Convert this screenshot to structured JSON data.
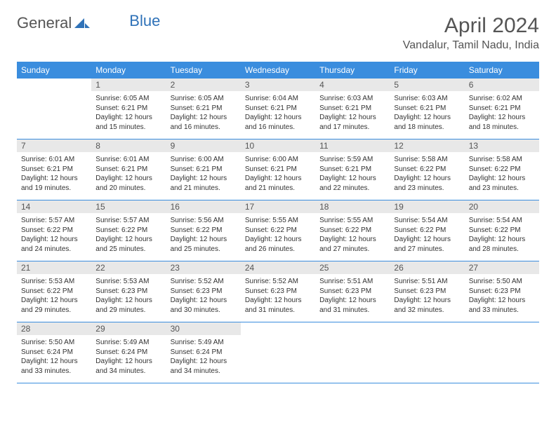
{
  "brand": {
    "part1": "General",
    "part2": "Blue"
  },
  "title": "April 2024",
  "location": "Vandalur, Tamil Nadu, India",
  "colors": {
    "header_bg": "#3a8dde",
    "header_fg": "#ffffff",
    "daynum_bg": "#e8e8e8",
    "row_border": "#3a8dde",
    "brand_gray": "#555555",
    "brand_blue": "#2f72b8"
  },
  "weekdays": [
    "Sunday",
    "Monday",
    "Tuesday",
    "Wednesday",
    "Thursday",
    "Friday",
    "Saturday"
  ],
  "weeks": [
    [
      {
        "n": "",
        "sr": "",
        "ss": "",
        "dl": ""
      },
      {
        "n": "1",
        "sr": "6:05 AM",
        "ss": "6:21 PM",
        "dl": "12 hours and 15 minutes."
      },
      {
        "n": "2",
        "sr": "6:05 AM",
        "ss": "6:21 PM",
        "dl": "12 hours and 16 minutes."
      },
      {
        "n": "3",
        "sr": "6:04 AM",
        "ss": "6:21 PM",
        "dl": "12 hours and 16 minutes."
      },
      {
        "n": "4",
        "sr": "6:03 AM",
        "ss": "6:21 PM",
        "dl": "12 hours and 17 minutes."
      },
      {
        "n": "5",
        "sr": "6:03 AM",
        "ss": "6:21 PM",
        "dl": "12 hours and 18 minutes."
      },
      {
        "n": "6",
        "sr": "6:02 AM",
        "ss": "6:21 PM",
        "dl": "12 hours and 18 minutes."
      }
    ],
    [
      {
        "n": "7",
        "sr": "6:01 AM",
        "ss": "6:21 PM",
        "dl": "12 hours and 19 minutes."
      },
      {
        "n": "8",
        "sr": "6:01 AM",
        "ss": "6:21 PM",
        "dl": "12 hours and 20 minutes."
      },
      {
        "n": "9",
        "sr": "6:00 AM",
        "ss": "6:21 PM",
        "dl": "12 hours and 21 minutes."
      },
      {
        "n": "10",
        "sr": "6:00 AM",
        "ss": "6:21 PM",
        "dl": "12 hours and 21 minutes."
      },
      {
        "n": "11",
        "sr": "5:59 AM",
        "ss": "6:21 PM",
        "dl": "12 hours and 22 minutes."
      },
      {
        "n": "12",
        "sr": "5:58 AM",
        "ss": "6:22 PM",
        "dl": "12 hours and 23 minutes."
      },
      {
        "n": "13",
        "sr": "5:58 AM",
        "ss": "6:22 PM",
        "dl": "12 hours and 23 minutes."
      }
    ],
    [
      {
        "n": "14",
        "sr": "5:57 AM",
        "ss": "6:22 PM",
        "dl": "12 hours and 24 minutes."
      },
      {
        "n": "15",
        "sr": "5:57 AM",
        "ss": "6:22 PM",
        "dl": "12 hours and 25 minutes."
      },
      {
        "n": "16",
        "sr": "5:56 AM",
        "ss": "6:22 PM",
        "dl": "12 hours and 25 minutes."
      },
      {
        "n": "17",
        "sr": "5:55 AM",
        "ss": "6:22 PM",
        "dl": "12 hours and 26 minutes."
      },
      {
        "n": "18",
        "sr": "5:55 AM",
        "ss": "6:22 PM",
        "dl": "12 hours and 27 minutes."
      },
      {
        "n": "19",
        "sr": "5:54 AM",
        "ss": "6:22 PM",
        "dl": "12 hours and 27 minutes."
      },
      {
        "n": "20",
        "sr": "5:54 AM",
        "ss": "6:22 PM",
        "dl": "12 hours and 28 minutes."
      }
    ],
    [
      {
        "n": "21",
        "sr": "5:53 AM",
        "ss": "6:22 PM",
        "dl": "12 hours and 29 minutes."
      },
      {
        "n": "22",
        "sr": "5:53 AM",
        "ss": "6:23 PM",
        "dl": "12 hours and 29 minutes."
      },
      {
        "n": "23",
        "sr": "5:52 AM",
        "ss": "6:23 PM",
        "dl": "12 hours and 30 minutes."
      },
      {
        "n": "24",
        "sr": "5:52 AM",
        "ss": "6:23 PM",
        "dl": "12 hours and 31 minutes."
      },
      {
        "n": "25",
        "sr": "5:51 AM",
        "ss": "6:23 PM",
        "dl": "12 hours and 31 minutes."
      },
      {
        "n": "26",
        "sr": "5:51 AM",
        "ss": "6:23 PM",
        "dl": "12 hours and 32 minutes."
      },
      {
        "n": "27",
        "sr": "5:50 AM",
        "ss": "6:23 PM",
        "dl": "12 hours and 33 minutes."
      }
    ],
    [
      {
        "n": "28",
        "sr": "5:50 AM",
        "ss": "6:24 PM",
        "dl": "12 hours and 33 minutes."
      },
      {
        "n": "29",
        "sr": "5:49 AM",
        "ss": "6:24 PM",
        "dl": "12 hours and 34 minutes."
      },
      {
        "n": "30",
        "sr": "5:49 AM",
        "ss": "6:24 PM",
        "dl": "12 hours and 34 minutes."
      },
      {
        "n": "",
        "sr": "",
        "ss": "",
        "dl": ""
      },
      {
        "n": "",
        "sr": "",
        "ss": "",
        "dl": ""
      },
      {
        "n": "",
        "sr": "",
        "ss": "",
        "dl": ""
      },
      {
        "n": "",
        "sr": "",
        "ss": "",
        "dl": ""
      }
    ]
  ],
  "labels": {
    "sunrise": "Sunrise:",
    "sunset": "Sunset:",
    "daylight": "Daylight:"
  }
}
